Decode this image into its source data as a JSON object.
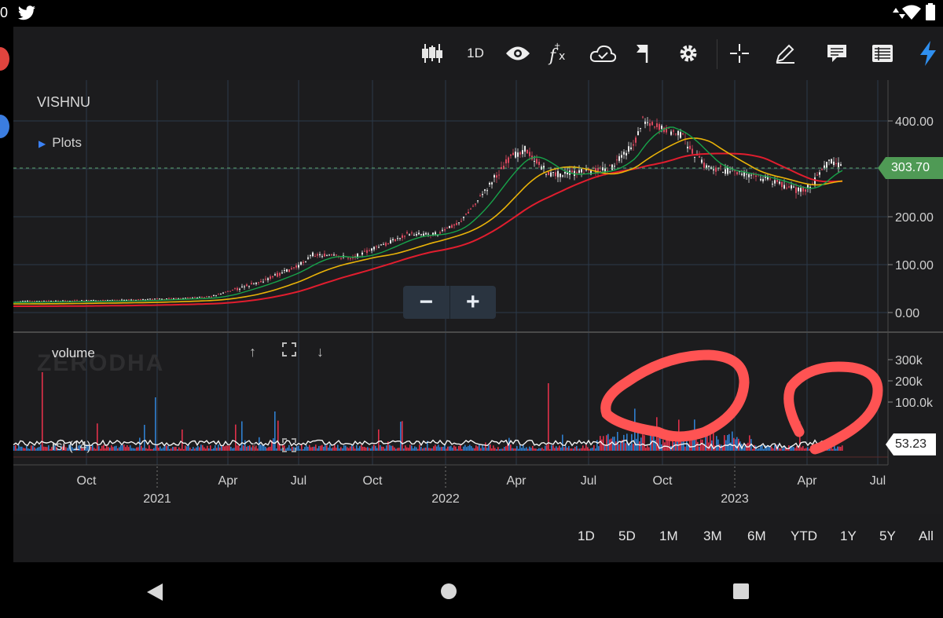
{
  "status_bar": {
    "left_text": "0"
  },
  "toolbar": {
    "interval": "1D"
  },
  "chart": {
    "symbol": "VISHNU",
    "plots_label": "Plots",
    "watermark": "ZERODHA",
    "price_axis": [
      "400.00",
      "300.00",
      "200.00",
      "100.00",
      "0.00"
    ],
    "last_price": "303.70",
    "volume_label": "volume",
    "volume_axis": [
      "300k",
      "200k",
      "100.0k"
    ],
    "rsi_label": "rsi (14)",
    "rsi_value": "53.23",
    "month_ticks": [
      "Oct",
      "Apr",
      "Jul",
      "Oct",
      "Apr",
      "Jul",
      "Oct",
      "Apr",
      "Jul"
    ],
    "year_ticks": [
      "2021",
      "2022",
      "2023"
    ],
    "colors": {
      "ma_fast": "#17a34a",
      "ma_mid": "#eab308",
      "ma_slow": "#e11d2e",
      "up": "#2f7fcf",
      "down": "#e0314a",
      "annotation": "#ff4d4d"
    }
  },
  "range_buttons": [
    "1D",
    "5D",
    "1M",
    "3M",
    "6M",
    "YTD",
    "1Y",
    "5Y",
    "All"
  ],
  "icons": [
    "candles-icon",
    "eye-icon",
    "fx-icon",
    "cloud-icon",
    "flag-icon",
    "gear-icon",
    "crosshair-icon",
    "pencil-icon",
    "comment-icon",
    "list-icon",
    "lightning-icon"
  ]
}
